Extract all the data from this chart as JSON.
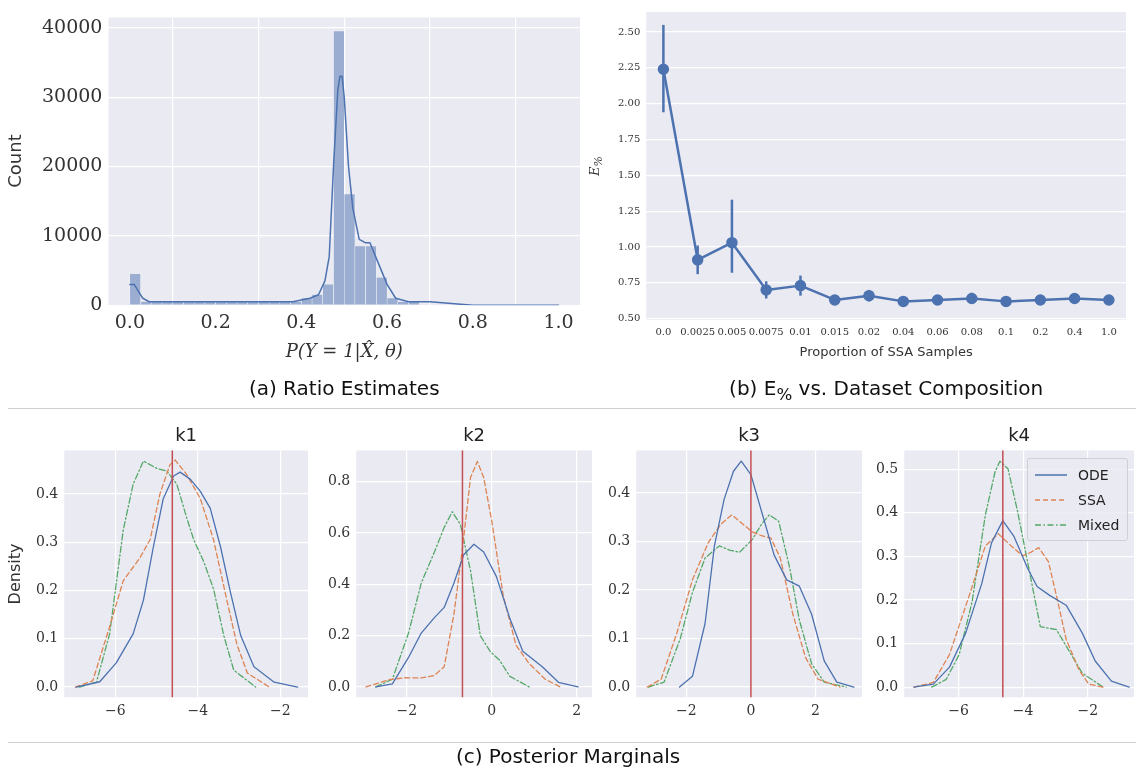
{
  "chart_data": [
    {
      "type": "histogram",
      "xlabel": "P(Y = 1|X̂, θ)",
      "ylabel": "Count",
      "series": [
        {
          "bins": [
            0,
            0.025,
            0.05,
            0.075,
            0.1,
            0.125,
            0.15,
            0.175,
            0.2,
            0.225,
            0.25,
            0.275,
            0.3,
            0.325,
            0.35,
            0.375,
            0.4,
            0.425,
            0.45,
            0.475,
            0.5,
            0.525,
            0.55,
            0.575,
            0.6,
            0.625,
            0.65,
            0.675,
            0.7,
            0.725,
            0.75,
            0.775,
            0.8,
            0.825,
            0.85,
            0.875,
            0.9,
            0.925,
            0.95,
            0.975,
            1.0
          ],
          "values": [
            4500,
            500,
            500,
            500,
            500,
            500,
            500,
            500,
            500,
            500,
            500,
            500,
            500,
            500,
            500,
            500,
            1000,
            1500,
            3000,
            39500,
            16000,
            8500,
            8500,
            4000,
            1000,
            500,
            500,
            0,
            0,
            0,
            0,
            0,
            0,
            0,
            0,
            0,
            0,
            0,
            0,
            0
          ],
          "color": "#9baed1"
        },
        {
          "type": "line",
          "x": [
            0,
            0.01,
            0.02,
            0.03,
            0.045,
            0.1,
            0.2,
            0.3,
            0.38,
            0.42,
            0.44,
            0.455,
            0.465,
            0.475,
            0.485,
            0.49,
            0.495,
            0.5,
            0.51,
            0.52,
            0.535,
            0.55,
            0.56,
            0.58,
            0.6,
            0.62,
            0.65,
            0.7,
            0.8,
            0.9,
            1.0
          ],
          "values": [
            3000,
            3000,
            2000,
            1000,
            500,
            500,
            500,
            500,
            500,
            1000,
            1500,
            3500,
            7000,
            20000,
            31000,
            33000,
            33000,
            30000,
            20000,
            14000,
            9500,
            9000,
            9000,
            6000,
            3000,
            1000,
            500,
            500,
            0,
            0,
            0
          ],
          "color": "#4c72b0"
        }
      ],
      "xlim": [
        -0.05,
        1.05
      ],
      "xticks": [
        {
          "value": 0,
          "label": "0.0"
        },
        0.2,
        0.4,
        0.6,
        0.8,
        {
          "value": 1,
          "label": "1.0"
        }
      ],
      "ylim": [
        0,
        41500
      ],
      "yticks": [
        0,
        10000,
        20000,
        30000,
        40000
      ],
      "grid": true,
      "annotations": [
        "(a) Ratio Estimates"
      ]
    },
    {
      "type": "line",
      "xlabel": "Proportion of SSA Samples",
      "ylabel": "E$_{%}$",
      "categories": [
        "0.0",
        "0.0025",
        "0.005",
        "0.0075",
        "0.01",
        "0.015",
        "0.02",
        "0.04",
        "0.06",
        "0.08",
        "0.1",
        "0.2",
        "0.4",
        "1.0"
      ],
      "values": [
        2.24,
        0.91,
        1.03,
        0.7,
        0.73,
        0.63,
        0.66,
        0.62,
        0.63,
        0.64,
        0.62,
        0.63,
        0.64,
        0.63
      ],
      "errors": [
        [
          1.94,
          2.55
        ],
        [
          0.81,
          1.01
        ],
        [
          0.82,
          1.33
        ],
        [
          0.64,
          0.76
        ],
        [
          0.66,
          0.8
        ],
        [
          0.6,
          0.66
        ],
        [
          0.62,
          0.7
        ],
        [
          0.6,
          0.64
        ],
        [
          0.61,
          0.66
        ],
        [
          0.61,
          0.68
        ],
        [
          0.6,
          0.65
        ],
        [
          0.61,
          0.66
        ],
        [
          0.61,
          0.66
        ],
        [
          0.6,
          0.66
        ]
      ],
      "color": "#4c72b0",
      "marker": "circle",
      "ylim": [
        0.49,
        2.64
      ],
      "yticks": [
        {
          "value": 0.5,
          "label": "0.50"
        },
        0.75,
        {
          "value": 1,
          "label": "1.00"
        },
        1.25,
        {
          "value": 1.5,
          "label": "1.50"
        },
        1.75,
        {
          "value": 2,
          "label": "2.00"
        },
        2.25,
        {
          "value": 2.5,
          "label": "2.50"
        }
      ],
      "grid": "y",
      "annotations": [
        "(b) E$_{%}$ vs. Dataset Composition"
      ]
    },
    {
      "type": "line",
      "title": "k1",
      "ylabel": "Density",
      "series": [
        {
          "x": [
            -6.95,
            -6.38,
            -5.98,
            -5.57,
            -5.32,
            -5.08,
            -4.84,
            -4.59,
            -4.43,
            -4.18,
            -3.94,
            -3.7,
            -3.45,
            -3.21,
            -2.96,
            -2.64,
            -2.15,
            -1.58
          ],
          "values": [
            0,
            0.011,
            0.05,
            0.11,
            0.18,
            0.29,
            0.39,
            0.437,
            0.445,
            0.43,
            0.405,
            0.37,
            0.29,
            0.196,
            0.106,
            0.042,
            0.01,
            0
          ],
          "color": "#4c72b0",
          "line_style": "solid"
        },
        {
          "x": [
            -6.97,
            -6.55,
            -6.14,
            -5.81,
            -5.41,
            -5.16,
            -4.92,
            -4.68,
            -4.55,
            -4.27,
            -3.94,
            -3.62,
            -3.29,
            -3.05,
            -2.8,
            -2.27
          ],
          "values": [
            0,
            0.013,
            0.125,
            0.22,
            0.267,
            0.305,
            0.4,
            0.46,
            0.47,
            0.44,
            0.39,
            0.305,
            0.177,
            0.087,
            0.029,
            0
          ],
          "color": "#dd8452",
          "line_style": "dashed"
        },
        {
          "x": [
            -6.87,
            -6.46,
            -6.14,
            -5.81,
            -5.57,
            -5.32,
            -5.0,
            -4.75,
            -4.51,
            -4.27,
            -4.1,
            -3.86,
            -3.62,
            -3.37,
            -3.13,
            -2.6
          ],
          "values": [
            0,
            0.01,
            0.11,
            0.325,
            0.42,
            0.468,
            0.453,
            0.447,
            0.42,
            0.35,
            0.305,
            0.26,
            0.203,
            0.106,
            0.035,
            0
          ],
          "color": "#55a868",
          "line_style": "dashdot"
        }
      ],
      "xlim": [
        -7.24,
        -1.33
      ],
      "xticks": [
        {
          "value": -6,
          "label": "−6"
        },
        {
          "value": -4,
          "label": "−4"
        },
        {
          "value": -2,
          "label": "−2"
        }
      ],
      "ylim": [
        -0.021,
        0.49
      ],
      "yticks": [
        {
          "value": 0,
          "label": "0.0"
        },
        0.1,
        0.2,
        0.3,
        0.4
      ],
      "grid": true,
      "ref_lines": [
        {
          "axis": "x",
          "value": -4.62,
          "color": "#c44e52"
        }
      ],
      "annotations": [
        "(c) Posterior Marginals"
      ]
    },
    {
      "type": "line",
      "title": "k2",
      "series": [
        {
          "x": [
            -2.73,
            -2.34,
            -1.96,
            -1.66,
            -1.35,
            -1.12,
            -0.89,
            -0.66,
            -0.42,
            -0.19,
            0.11,
            0.42,
            0.73,
            1.19,
            1.57,
            2.03
          ],
          "values": [
            0,
            0.012,
            0.115,
            0.21,
            0.27,
            0.31,
            0.405,
            0.515,
            0.556,
            0.526,
            0.43,
            0.27,
            0.139,
            0.079,
            0.018,
            0
          ],
          "color": "#4c72b0",
          "line_style": "solid"
        },
        {
          "x": [
            -2.96,
            -2.42,
            -2.04,
            -1.66,
            -1.35,
            -1.12,
            -0.89,
            -0.7,
            -0.5,
            -0.34,
            -0.19,
            0,
            0.27,
            0.57,
            0.88,
            1.26,
            1.61
          ],
          "values": [
            0,
            0.028,
            0.036,
            0.035,
            0.045,
            0.079,
            0.284,
            0.526,
            0.816,
            0.879,
            0.816,
            0.647,
            0.356,
            0.163,
            0.091,
            0.03,
            0
          ],
          "color": "#dd8452",
          "line_style": "dashed"
        },
        {
          "x": [
            -2.73,
            -2.34,
            -1.96,
            -1.66,
            -1.35,
            -1.12,
            -0.93,
            -0.74,
            -0.5,
            -0.27,
            -0.04,
            0.19,
            0.42,
            0.88
          ],
          "values": [
            0,
            0.03,
            0.21,
            0.405,
            0.526,
            0.622,
            0.683,
            0.634,
            0.453,
            0.2,
            0.139,
            0.103,
            0.042,
            0
          ],
          "color": "#55a868",
          "line_style": "dashdot"
        }
      ],
      "xlim": [
        -3.19,
        2.36
      ],
      "xticks": [
        {
          "value": -2,
          "label": "−2"
        },
        0,
        2
      ],
      "ylim": [
        -0.04,
        0.922
      ],
      "yticks": [
        {
          "value": 0,
          "label": "0.0"
        },
        0.2,
        0.4,
        0.6,
        0.8
      ],
      "grid": true,
      "ref_lines": [
        {
          "axis": "x",
          "value": -0.69,
          "color": "#c44e52"
        }
      ]
    },
    {
      "type": "line",
      "title": "k3",
      "series": [
        {
          "x": [
            -2.21,
            -1.81,
            -1.42,
            -1.13,
            -0.83,
            -0.54,
            -0.3,
            0,
            0.33,
            0.72,
            1.11,
            1.5,
            1.88,
            2.27,
            2.66,
            3.19
          ],
          "values": [
            0,
            0.022,
            0.131,
            0.291,
            0.387,
            0.445,
            0.466,
            0.438,
            0.362,
            0.272,
            0.221,
            0.208,
            0.15,
            0.054,
            0.01,
            0
          ],
          "color": "#4c72b0",
          "line_style": "solid"
        },
        {
          "x": [
            -3.21,
            -2.78,
            -2.29,
            -1.81,
            -1.32,
            -0.93,
            -0.59,
            -0.25,
            0.04,
            0.33,
            0.62,
            0.91,
            1.3,
            1.69,
            2.08,
            2.76
          ],
          "values": [
            0,
            0.016,
            0.112,
            0.221,
            0.298,
            0.336,
            0.355,
            0.336,
            0.32,
            0.312,
            0.307,
            0.266,
            0.15,
            0.061,
            0.016,
            0
          ],
          "color": "#dd8452",
          "line_style": "dashed"
        },
        {
          "x": [
            -3.17,
            -2.69,
            -2.19,
            -1.81,
            -1.42,
            -0.98,
            -0.64,
            -0.35,
            0.04,
            0.33,
            0.57,
            0.86,
            1.2,
            1.5,
            1.88,
            2.27,
            2.95
          ],
          "values": [
            0,
            0.01,
            0.099,
            0.195,
            0.266,
            0.291,
            0.282,
            0.278,
            0.304,
            0.336,
            0.355,
            0.342,
            0.246,
            0.138,
            0.048,
            0.01,
            0
          ],
          "color": "#55a868",
          "line_style": "dashdot"
        }
      ],
      "xlim": [
        -3.55,
        3.44
      ],
      "xticks": [
        {
          "value": -2,
          "label": "−2"
        },
        0,
        2
      ],
      "ylim": [
        -0.021,
        0.488
      ],
      "yticks": [
        {
          "value": 0,
          "label": "0.0"
        },
        0.1,
        0.2,
        0.3,
        0.4
      ],
      "grid": true,
      "ref_lines": [
        {
          "axis": "x",
          "value": 0,
          "color": "#c44e52"
        }
      ]
    },
    {
      "type": "line",
      "title": "k4",
      "legend": "top right",
      "series": [
        {
          "name": "ODE",
          "x": [
            -7.38,
            -6.78,
            -6.28,
            -5.78,
            -5.28,
            -4.98,
            -4.63,
            -4.28,
            -3.87,
            -3.57,
            -3.17,
            -2.67,
            -2.17,
            -1.77,
            -1.27,
            -0.72
          ],
          "values": [
            0,
            0.007,
            0.046,
            0.124,
            0.238,
            0.331,
            0.382,
            0.345,
            0.274,
            0.231,
            0.21,
            0.188,
            0.124,
            0.06,
            0.014,
            0
          ],
          "color": "#4c72b0",
          "line_style": "solid"
        },
        {
          "name": "SSA",
          "x": [
            -7.38,
            -6.78,
            -6.28,
            -5.67,
            -5.17,
            -4.77,
            -4.37,
            -4.02,
            -3.77,
            -3.52,
            -3.22,
            -2.97,
            -2.67,
            -2.27,
            -1.97,
            -1.52
          ],
          "values": [
            0,
            0.011,
            0.075,
            0.21,
            0.324,
            0.352,
            0.324,
            0.301,
            0.309,
            0.32,
            0.288,
            0.21,
            0.11,
            0.039,
            0.007,
            0
          ],
          "color": "#dd8452",
          "line_style": "dashed"
        },
        {
          "name": "Mixed",
          "x": [
            -6.83,
            -6.38,
            -5.98,
            -5.58,
            -5.17,
            -4.87,
            -4.72,
            -4.47,
            -4.17,
            -3.77,
            -3.47,
            -2.97,
            -2.57,
            -2.17,
            -1.52
          ],
          "values": [
            0,
            0.018,
            0.075,
            0.196,
            0.395,
            0.494,
            0.518,
            0.501,
            0.402,
            0.252,
            0.139,
            0.132,
            0.082,
            0.032,
            0
          ],
          "color": "#55a868",
          "line_style": "dashdot"
        }
      ],
      "xlim": [
        -7.68,
        -0.57
      ],
      "xticks": [
        {
          "value": -6,
          "label": "−6"
        },
        {
          "value": -4,
          "label": "−4"
        },
        {
          "value": -2,
          "label": "−2"
        }
      ],
      "ylim": [
        -0.023,
        0.543
      ],
      "yticks": [
        {
          "value": 0,
          "label": "0.0"
        },
        0.1,
        0.2,
        0.3,
        0.4,
        0.5
      ],
      "grid": true,
      "ref_lines": [
        {
          "axis": "x",
          "value": -4.63,
          "color": "#c44e52"
        }
      ]
    }
  ]
}
